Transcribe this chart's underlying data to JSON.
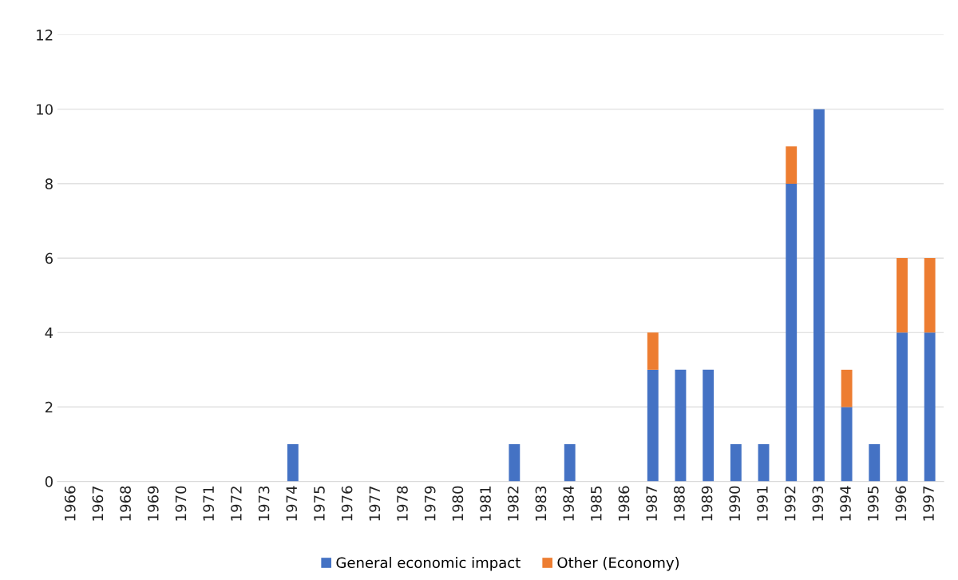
{
  "chart_data": {
    "type": "bar",
    "stacked": true,
    "categories": [
      "1966",
      "1967",
      "1968",
      "1969",
      "1970",
      "1971",
      "1972",
      "1973",
      "1974",
      "1975",
      "1976",
      "1977",
      "1978",
      "1979",
      "1980",
      "1981",
      "1982",
      "1983",
      "1984",
      "1985",
      "1986",
      "1987",
      "1988",
      "1989",
      "1990",
      "1991",
      "1992",
      "1993",
      "1994",
      "1995",
      "1996",
      "1997"
    ],
    "series": [
      {
        "name": "General economic impact",
        "color": "#4472c4",
        "values": [
          0,
          0,
          0,
          0,
          0,
          0,
          0,
          0,
          1,
          0,
          0,
          0,
          0,
          0,
          0,
          0,
          1,
          0,
          1,
          0,
          0,
          3,
          3,
          3,
          1,
          1,
          8,
          10,
          2,
          1,
          4,
          4
        ]
      },
      {
        "name": "Other (Economy)",
        "color": "#ed7d31",
        "values": [
          0,
          0,
          0,
          0,
          0,
          0,
          0,
          0,
          0,
          0,
          0,
          0,
          0,
          0,
          0,
          0,
          0,
          0,
          0,
          0,
          0,
          1,
          0,
          0,
          0,
          0,
          1,
          0,
          1,
          0,
          2,
          2
        ]
      }
    ],
    "ylim": [
      0,
      12
    ],
    "yticks": [
      0,
      2,
      4,
      6,
      8,
      10,
      12
    ],
    "grid": "y",
    "legend": "bottom"
  }
}
